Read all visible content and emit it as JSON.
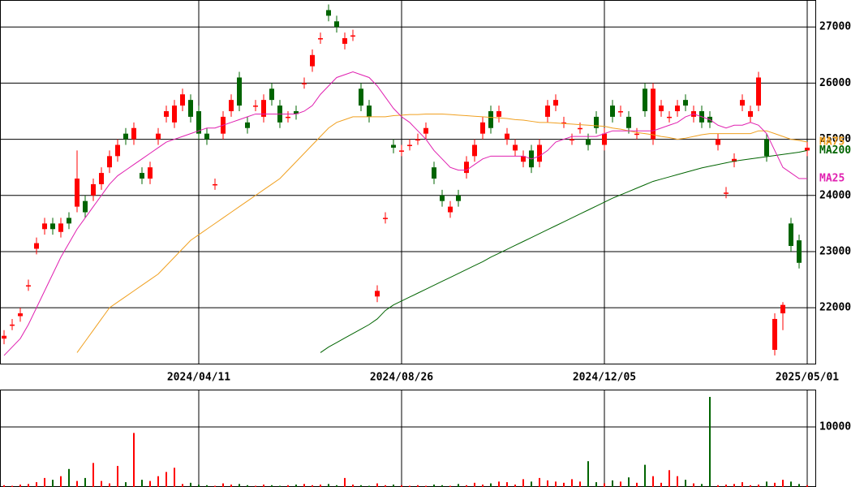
{
  "chart_data": [
    {
      "type": "candlestick",
      "categories": [
        null,
        null,
        null,
        null,
        null,
        null,
        null,
        null,
        null,
        null,
        null,
        null,
        null,
        null,
        null,
        null,
        null,
        null,
        null,
        null,
        null,
        null,
        null,
        null,
        "2024/04/11",
        null,
        null,
        null,
        null,
        null,
        null,
        null,
        null,
        null,
        null,
        null,
        null,
        null,
        null,
        null,
        null,
        null,
        null,
        null,
        null,
        null,
        null,
        null,
        null,
        "2024/08/26",
        null,
        null,
        null,
        null,
        null,
        null,
        null,
        null,
        null,
        null,
        null,
        null,
        null,
        null,
        null,
        null,
        null,
        null,
        null,
        null,
        null,
        null,
        null,
        null,
        "2024/12/05",
        null,
        null,
        null,
        null,
        null,
        null,
        null,
        null,
        null,
        null,
        null,
        null,
        null,
        null,
        null,
        null,
        null,
        null,
        null,
        null,
        null,
        null,
        null,
        null,
        "2025/05/01"
      ],
      "open": [
        21450,
        21700,
        21850,
        22400,
        23050,
        23400,
        23500,
        23350,
        23600,
        23800,
        23900,
        24000,
        24200,
        24500,
        24700,
        25100,
        25000,
        24400,
        24300,
        25000,
        25400,
        25300,
        25600,
        25700,
        25500,
        25100,
        24200,
        25100,
        25500,
        26100,
        25300,
        25600,
        25400,
        25900,
        25600,
        25400,
        25500,
        26000,
        26300,
        26800,
        27300,
        27100,
        26700,
        26850,
        25900,
        25600,
        22200,
        23600,
        24900,
        24800,
        24900,
        25000,
        25100,
        24500,
        24000,
        23700,
        24000,
        24400,
        24700,
        25100,
        25500,
        25400,
        25000,
        24800,
        24600,
        24800,
        24600,
        25400,
        25600,
        25300,
        25000,
        25200,
        25000,
        25400,
        24900,
        25600,
        25500,
        25400,
        25100,
        25900,
        25000,
        25500,
        25400,
        25500,
        25700,
        25400,
        25500,
        25400,
        24900,
        24050,
        24600,
        25600,
        25400,
        25600,
        25000,
        21250,
        21900,
        23500,
        23200,
        24800
      ],
      "high": [
        21600,
        21800,
        22000,
        22500,
        23250,
        23600,
        23600,
        23600,
        23700,
        24800,
        24000,
        24300,
        24500,
        24800,
        25000,
        25200,
        25300,
        24500,
        24600,
        25200,
        25600,
        25700,
        25900,
        25800,
        25600,
        25200,
        24300,
        25500,
        25800,
        26200,
        25400,
        25700,
        25800,
        26000,
        25700,
        25500,
        25600,
        26100,
        26600,
        26900,
        27400,
        27200,
        26900,
        26950,
        26000,
        25700,
        22400,
        23700,
        25000,
        24900,
        25000,
        25100,
        25300,
        24600,
        24100,
        23900,
        24100,
        24700,
        25000,
        25400,
        25600,
        25600,
        25200,
        25000,
        24800,
        24900,
        25000,
        25700,
        25800,
        25400,
        25100,
        25300,
        25100,
        25500,
        25200,
        25700,
        25600,
        25500,
        25200,
        26000,
        26000,
        25700,
        25500,
        25700,
        25800,
        25600,
        25600,
        25500,
        25100,
        24150,
        24750,
        25800,
        25600,
        26200,
        25100,
        21900,
        22100,
        23600,
        23300,
        24950
      ],
      "low": [
        21350,
        21600,
        21750,
        22300,
        22950,
        23300,
        23300,
        23250,
        23400,
        23700,
        23600,
        23900,
        24100,
        24400,
        24600,
        24900,
        24900,
        24200,
        24200,
        24900,
        25300,
        25200,
        25500,
        25300,
        25000,
        24900,
        24100,
        25000,
        25400,
        25500,
        25100,
        25500,
        25300,
        25600,
        25200,
        25300,
        25350,
        25900,
        26200,
        26700,
        27100,
        26900,
        26600,
        26750,
        25500,
        25300,
        22100,
        23500,
        24750,
        24700,
        24800,
        24900,
        25000,
        24200,
        23800,
        23600,
        23800,
        24300,
        24600,
        25000,
        25100,
        25300,
        24900,
        24700,
        24500,
        24400,
        24500,
        25300,
        25500,
        25200,
        24900,
        25100,
        24800,
        25100,
        24800,
        25300,
        25400,
        25100,
        25000,
        25400,
        24900,
        25400,
        25300,
        25400,
        25500,
        25300,
        25200,
        25200,
        24800,
        23950,
        24500,
        25500,
        25300,
        25500,
        24600,
        21150,
        21600,
        23000,
        22700,
        24700
      ],
      "close": [
        21500,
        21700,
        21900,
        22400,
        23150,
        23500,
        23400,
        23500,
        23500,
        24300,
        23700,
        24200,
        24400,
        24700,
        24900,
        25000,
        25200,
        24300,
        24500,
        25100,
        25500,
        25600,
        25800,
        25400,
        25100,
        25000,
        24200,
        25400,
        25700,
        25600,
        25200,
        25600,
        25700,
        25700,
        25300,
        25400,
        25450,
        26000,
        26500,
        26800,
        27200,
        27000,
        26800,
        26850,
        25600,
        25400,
        22300,
        23600,
        24850,
        24800,
        24900,
        25000,
        25200,
        24300,
        23900,
        23800,
        23900,
        24600,
        24900,
        25300,
        25200,
        25500,
        25100,
        24900,
        24700,
        24500,
        24900,
        25600,
        25700,
        25300,
        25000,
        25200,
        24900,
        25200,
        25100,
        25400,
        25500,
        25200,
        25100,
        25500,
        25900,
        25600,
        25400,
        25600,
        25600,
        25500,
        25300,
        25300,
        25000,
        24050,
        24650,
        25700,
        25500,
        26100,
        24700,
        21800,
        22050,
        23100,
        22800,
        24850
      ],
      "up_color": "#ff0000",
      "down_color": "#006400",
      "series": [
        {
          "name": "MA75",
          "color": "#f0a020",
          "values": [
            null,
            null,
            null,
            null,
            null,
            null,
            null,
            null,
            null,
            21200,
            21400,
            21600,
            21800,
            22000,
            22100,
            22200,
            22300,
            22400,
            22500,
            22600,
            22750,
            22900,
            23050,
            23200,
            23300,
            23400,
            23500,
            23600,
            23700,
            23800,
            23900,
            24000,
            24100,
            24200,
            24300,
            24450,
            24600,
            24750,
            24900,
            25050,
            25200,
            25300,
            25350,
            25400,
            25400,
            25400,
            25400,
            25400,
            25420,
            25430,
            25440,
            25440,
            25450,
            25450,
            25450,
            25440,
            25430,
            25420,
            25410,
            25400,
            25390,
            25380,
            25370,
            25350,
            25340,
            25320,
            25300,
            25300,
            25290,
            25280,
            25270,
            25260,
            25250,
            25240,
            25230,
            25200,
            25180,
            25150,
            25120,
            25100,
            25080,
            25050,
            25030,
            25000,
            25020,
            25050,
            25080,
            25100,
            25100,
            25100,
            25100,
            25100,
            25100,
            25150,
            25150,
            25100,
            25050,
            25000,
            24980,
            24950
          ]
        },
        {
          "name": "MA200",
          "color": "#006400",
          "values": [
            null,
            null,
            null,
            null,
            null,
            null,
            null,
            null,
            null,
            null,
            null,
            null,
            null,
            null,
            null,
            null,
            null,
            null,
            null,
            null,
            null,
            null,
            null,
            null,
            null,
            null,
            null,
            null,
            null,
            null,
            null,
            null,
            null,
            null,
            null,
            null,
            null,
            null,
            null,
            21200,
            21300,
            21380,
            21460,
            21540,
            21620,
            21700,
            21800,
            21950,
            22050,
            22120,
            22190,
            22260,
            22330,
            22400,
            22470,
            22540,
            22610,
            22680,
            22750,
            22820,
            22900,
            22970,
            23040,
            23110,
            23180,
            23250,
            23320,
            23390,
            23460,
            23530,
            23600,
            23670,
            23740,
            23810,
            23880,
            23950,
            24010,
            24070,
            24130,
            24190,
            24250,
            24290,
            24330,
            24370,
            24410,
            24450,
            24490,
            24520,
            24550,
            24580,
            24610,
            24630,
            24650,
            24670,
            24690,
            24710,
            24730,
            24750,
            24770,
            24800
          ]
        },
        {
          "name": "MA25",
          "color": "#e020b0",
          "values": [
            21150,
            21300,
            21450,
            21700,
            22000,
            22300,
            22600,
            22900,
            23150,
            23400,
            23600,
            23800,
            24000,
            24200,
            24350,
            24450,
            24550,
            24650,
            24750,
            24850,
            24950,
            25000,
            25050,
            25100,
            25150,
            25200,
            25200,
            25250,
            25300,
            25350,
            25400,
            25450,
            25450,
            25450,
            25450,
            25450,
            25450,
            25500,
            25600,
            25800,
            25950,
            26100,
            26150,
            26200,
            26150,
            26100,
            25950,
            25750,
            25550,
            25400,
            25300,
            25150,
            25000,
            24800,
            24650,
            24500,
            24450,
            24450,
            24550,
            24650,
            24700,
            24700,
            24700,
            24700,
            24700,
            24650,
            24700,
            24800,
            24950,
            25000,
            25050,
            25050,
            25050,
            25050,
            25100,
            25150,
            25150,
            25150,
            25150,
            25150,
            25150,
            25200,
            25250,
            25300,
            25400,
            25450,
            25400,
            25350,
            25250,
            25200,
            25250,
            25250,
            25300,
            25250,
            25100,
            24800,
            24500,
            24400,
            24300,
            24300
          ]
        }
      ],
      "ylim": [
        20990,
        27480
      ],
      "yticks": [
        22000,
        23000,
        24000,
        25000,
        26000,
        27000
      ],
      "grid": true
    },
    {
      "type": "bar",
      "values": [
        300,
        200,
        400,
        500,
        800,
        1500,
        1200,
        1800,
        3000,
        1000,
        1500,
        4000,
        1000,
        600,
        3500,
        800,
        9000,
        1200,
        1000,
        1800,
        2500,
        3200,
        500,
        700,
        400,
        300,
        200,
        600,
        400,
        500,
        300,
        200,
        400,
        300,
        200,
        300,
        400,
        500,
        300,
        400,
        500,
        300,
        1500,
        400,
        300,
        200,
        600,
        300,
        400,
        300,
        200,
        300,
        200,
        400,
        300,
        200,
        500,
        300,
        700,
        400,
        600,
        900,
        800,
        400,
        1300,
        900,
        1500,
        1100,
        900,
        700,
        1300,
        900,
        4300,
        800,
        600,
        1100,
        900,
        1600,
        700,
        3700,
        1800,
        700,
        2800,
        1800,
        1200,
        600,
        500,
        15000,
        300,
        400,
        500,
        800,
        300,
        400,
        900,
        700,
        1200,
        900,
        500,
        300
      ],
      "ylim": [
        0,
        16220
      ],
      "yticks": [
        10000
      ],
      "grid": true
    }
  ]
}
